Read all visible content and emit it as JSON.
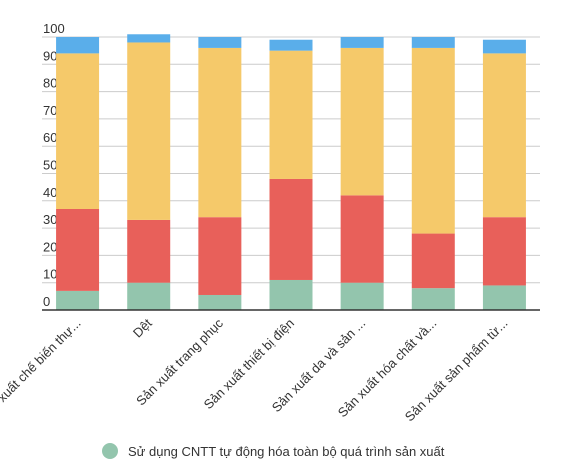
{
  "chart_data": {
    "type": "bar",
    "stacked": true,
    "categories": [
      "Sản xuất chế biến thự...",
      "Dệt",
      "Sản xuất trang phục",
      "Sản xuất thiết bị điện",
      "Sản xuất da và sản ...",
      "Sản xuất hóa chất và...",
      "Sản xuất sản phẩm từ..."
    ],
    "series": [
      {
        "name": "Sử dụng CNTT tự động hóa toàn bộ quá trình sản xuất",
        "color": "#93c5ad",
        "values": [
          7,
          10,
          5.5,
          11,
          10,
          8,
          9
        ]
      },
      {
        "color": "#e8605a",
        "values": [
          30,
          23,
          28.5,
          37,
          32,
          20,
          25
        ]
      },
      {
        "color": "#f5c96a",
        "values": [
          57,
          65,
          62,
          47,
          54,
          68,
          60
        ]
      },
      {
        "color": "#5aaeea",
        "values": [
          6,
          3,
          4,
          4,
          4,
          4,
          5
        ]
      }
    ],
    "yticks": [
      0,
      10,
      20,
      30,
      40,
      50,
      60,
      70,
      80,
      90,
      100
    ],
    "ylim": [
      0,
      100
    ],
    "grid": true,
    "legend_position": "bottom"
  }
}
